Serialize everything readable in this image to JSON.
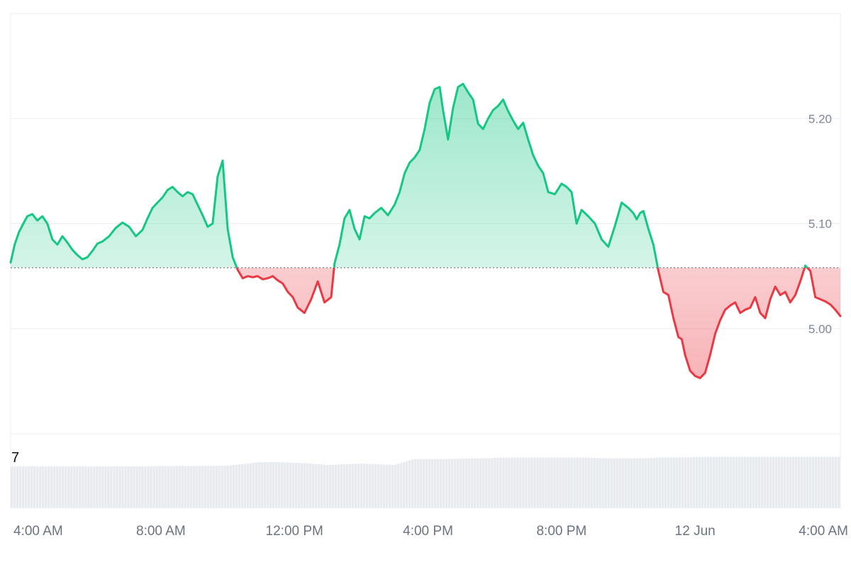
{
  "chart_data": {
    "type": "area",
    "baseline": 5.058,
    "ylim": [
      4.9,
      5.3
    ],
    "y_ticks": [
      {
        "value": 5.2,
        "label": "5.20"
      },
      {
        "value": 5.1,
        "label": "5.10"
      },
      {
        "value": 5.0,
        "label": "5.00"
      }
    ],
    "x_range": [
      3.5,
      28.35
    ],
    "x_ticks": [
      {
        "value": 4,
        "label": "4:00 AM"
      },
      {
        "value": 8,
        "label": "8:00 AM"
      },
      {
        "value": 12,
        "label": "12:00 PM"
      },
      {
        "value": 16,
        "label": "4:00 PM"
      },
      {
        "value": 20,
        "label": "8:00 PM"
      },
      {
        "value": 24,
        "label": "12 Jun"
      },
      {
        "value": 28,
        "label": "4:00 AM"
      }
    ],
    "volume_label": "7",
    "colors": {
      "up": "#16c784",
      "down": "#ea3943",
      "grid": "#eceef2",
      "baseline": "#777e87",
      "volume": "#e7eaee"
    },
    "price_series": {
      "x": [
        3.5,
        3.62,
        3.75,
        3.88,
        4.0,
        4.15,
        4.3,
        4.45,
        4.6,
        4.75,
        4.9,
        5.05,
        5.2,
        5.35,
        5.5,
        5.65,
        5.8,
        5.95,
        6.1,
        6.25,
        6.45,
        6.65,
        6.85,
        7.05,
        7.25,
        7.45,
        7.6,
        7.75,
        7.9,
        8.05,
        8.2,
        8.35,
        8.5,
        8.65,
        8.8,
        8.95,
        9.1,
        9.25,
        9.4,
        9.55,
        9.7,
        9.85,
        10.0,
        10.15,
        10.3,
        10.45,
        10.6,
        10.75,
        10.9,
        11.05,
        11.2,
        11.35,
        11.5,
        11.65,
        11.8,
        11.95,
        12.1,
        12.3,
        12.5,
        12.7,
        12.9,
        13.1,
        13.2,
        13.35,
        13.5,
        13.65,
        13.8,
        13.95,
        14.1,
        14.25,
        14.4,
        14.6,
        14.8,
        15.0,
        15.15,
        15.3,
        15.45,
        15.6,
        15.75,
        15.9,
        16.05,
        16.2,
        16.35,
        16.45,
        16.6,
        16.75,
        16.9,
        17.05,
        17.2,
        17.35,
        17.5,
        17.65,
        17.8,
        17.95,
        18.1,
        18.25,
        18.4,
        18.55,
        18.7,
        18.85,
        19.0,
        19.15,
        19.3,
        19.45,
        19.6,
        19.8,
        20.0,
        20.15,
        20.3,
        20.45,
        20.6,
        20.8,
        21.0,
        21.2,
        21.4,
        21.6,
        21.8,
        22.0,
        22.15,
        22.25,
        22.35,
        22.45,
        22.6,
        22.75,
        22.9,
        23.05,
        23.2,
        23.35,
        23.5,
        23.6,
        23.7,
        23.85,
        24.0,
        24.15,
        24.3,
        24.45,
        24.6,
        24.75,
        24.9,
        25.05,
        25.2,
        25.35,
        25.5,
        25.65,
        25.8,
        25.95,
        26.1,
        26.25,
        26.4,
        26.55,
        26.7,
        26.85,
        27.0,
        27.15,
        27.3,
        27.45,
        27.6,
        27.75,
        27.9,
        28.05,
        28.2,
        28.35
      ],
      "y": [
        5.063,
        5.08,
        5.092,
        5.1,
        5.107,
        5.109,
        5.103,
        5.107,
        5.1,
        5.085,
        5.08,
        5.088,
        5.082,
        5.075,
        5.07,
        5.066,
        5.068,
        5.074,
        5.081,
        5.083,
        5.088,
        5.096,
        5.101,
        5.097,
        5.088,
        5.094,
        5.105,
        5.115,
        5.12,
        5.125,
        5.132,
        5.135,
        5.13,
        5.126,
        5.13,
        5.128,
        5.118,
        5.108,
        5.097,
        5.1,
        5.145,
        5.16,
        5.095,
        5.068,
        5.056,
        5.048,
        5.05,
        5.049,
        5.05,
        5.047,
        5.048,
        5.05,
        5.046,
        5.043,
        5.035,
        5.03,
        5.02,
        5.015,
        5.028,
        5.045,
        5.025,
        5.03,
        5.062,
        5.08,
        5.105,
        5.113,
        5.095,
        5.085,
        5.107,
        5.105,
        5.11,
        5.115,
        5.108,
        5.118,
        5.13,
        5.148,
        5.158,
        5.163,
        5.17,
        5.19,
        5.215,
        5.228,
        5.23,
        5.208,
        5.18,
        5.21,
        5.23,
        5.233,
        5.225,
        5.218,
        5.195,
        5.19,
        5.2,
        5.208,
        5.212,
        5.218,
        5.207,
        5.198,
        5.19,
        5.196,
        5.18,
        5.165,
        5.155,
        5.148,
        5.13,
        5.128,
        5.138,
        5.135,
        5.13,
        5.1,
        5.113,
        5.107,
        5.1,
        5.085,
        5.078,
        5.098,
        5.12,
        5.115,
        5.11,
        5.104,
        5.11,
        5.112,
        5.095,
        5.08,
        5.055,
        5.035,
        5.032,
        5.01,
        4.992,
        4.99,
        4.975,
        4.96,
        4.955,
        4.953,
        4.958,
        4.975,
        4.995,
        5.008,
        5.018,
        5.022,
        5.025,
        5.015,
        5.018,
        5.02,
        5.03,
        5.015,
        5.01,
        5.028,
        5.04,
        5.032,
        5.035,
        5.025,
        5.032,
        5.045,
        5.06,
        5.055,
        5.03,
        5.028,
        5.026,
        5.023,
        5.018,
        5.012
      ]
    },
    "volume_series": {
      "x": [
        3.5,
        6.0,
        10.0,
        11.0,
        11.5,
        12.5,
        13.0,
        14.0,
        15.0,
        15.6,
        16.5,
        17.5,
        18.5,
        19.5,
        20.5,
        21.5,
        22.5,
        23.0,
        23.5,
        24.5,
        26.5,
        28.35
      ],
      "level": [
        0.56,
        0.56,
        0.57,
        0.62,
        0.62,
        0.6,
        0.58,
        0.6,
        0.58,
        0.66,
        0.66,
        0.67,
        0.68,
        0.68,
        0.68,
        0.67,
        0.67,
        0.68,
        0.68,
        0.69,
        0.69,
        0.69
      ]
    }
  }
}
